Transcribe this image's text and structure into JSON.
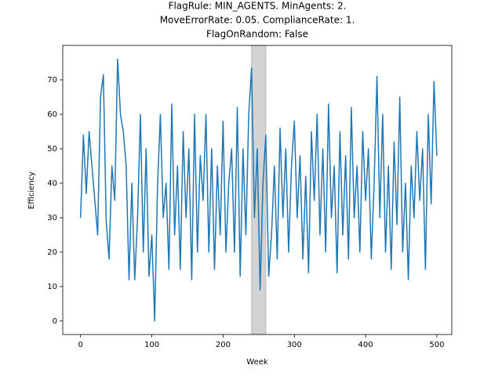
{
  "chart_data": {
    "type": "line",
    "title": [
      "FlagRule: MIN_AGENTS. MinAgents: 2.",
      "MoveErrorRate: 0.05. ComplianceRate: 1.",
      "FlagOnRandom: False"
    ],
    "x_label": "Week",
    "y_label": "Efficiency",
    "x": [
      0,
      4,
      8,
      12,
      16,
      20,
      24,
      28,
      32,
      36,
      40,
      44,
      48,
      52,
      56,
      60,
      64,
      68,
      72,
      76,
      80,
      84,
      88,
      92,
      96,
      100,
      104,
      108,
      112,
      116,
      120,
      124,
      128,
      132,
      136,
      140,
      144,
      148,
      152,
      156,
      160,
      164,
      168,
      172,
      176,
      180,
      184,
      188,
      192,
      196,
      200,
      204,
      208,
      212,
      216,
      220,
      224,
      228,
      232,
      236,
      240,
      244,
      248,
      252,
      256,
      260,
      264,
      268,
      272,
      276,
      280,
      284,
      288,
      292,
      296,
      300,
      304,
      308,
      312,
      316,
      320,
      324,
      328,
      332,
      336,
      340,
      344,
      348,
      352,
      356,
      360,
      364,
      368,
      372,
      376,
      380,
      384,
      388,
      392,
      396,
      400,
      404,
      408,
      412,
      416,
      420,
      424,
      428,
      432,
      436,
      440,
      444,
      448,
      452,
      456,
      460,
      464,
      468,
      472,
      476,
      480,
      484,
      488,
      492,
      496,
      500
    ],
    "series": [
      {
        "color": "#1f77b4",
        "values": [
          30,
          54,
          37,
          55,
          45,
          35,
          25,
          65,
          71.5,
          29,
          18,
          45,
          35,
          76,
          60,
          55,
          45,
          12,
          40,
          12,
          30,
          60,
          20,
          50,
          13,
          25,
          0,
          39,
          60,
          30,
          40,
          15,
          63,
          25,
          45,
          15,
          55,
          30,
          50,
          12,
          60,
          20,
          48,
          35,
          60,
          20,
          50,
          15,
          45,
          25,
          58,
          20,
          40,
          50,
          20,
          62,
          13,
          50,
          25,
          60,
          73.5,
          30,
          50,
          9,
          40,
          54,
          13,
          25,
          45,
          18,
          56,
          30,
          50,
          20,
          45,
          58,
          30,
          48,
          18,
          42,
          14,
          55,
          35,
          60,
          25,
          50,
          20,
          63,
          30,
          45,
          14,
          55,
          25,
          48,
          18,
          62,
          30,
          45,
          20,
          55,
          35,
          50,
          18,
          40,
          71,
          30,
          60,
          20,
          45,
          15,
          52,
          28,
          65,
          20,
          40,
          12,
          45,
          30,
          55,
          35,
          50,
          15,
          60,
          34,
          69.5,
          48
        ]
      }
    ],
    "span": [
      240,
      260
    ],
    "span_color": "#d3d3d3",
    "xlim": [
      -25,
      521
    ],
    "ylim": [
      -3.9,
      80
    ],
    "xticks": [
      0,
      100,
      200,
      300,
      400,
      500
    ],
    "yticks": [
      0,
      10,
      20,
      30,
      40,
      50,
      60,
      70
    ]
  }
}
